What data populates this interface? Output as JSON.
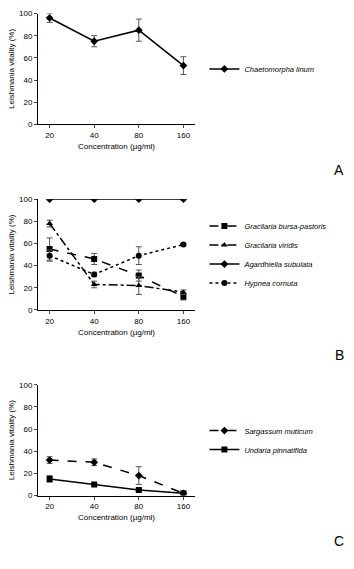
{
  "chart_data": [
    {
      "type": "line",
      "title": "A",
      "x_label": "Concentration (µg/ml)",
      "y_label": "Leishmania vitality (%)",
      "categories": [
        "20",
        "40",
        "80",
        "160"
      ],
      "ylim": [
        0,
        100
      ],
      "yticks": [
        0,
        20,
        40,
        60,
        80,
        100
      ],
      "grid": false,
      "legend": "right",
      "series": [
        {
          "name": "Chaetomorpha linum",
          "color": "#000000",
          "marker": "diamond",
          "line_style": "solid",
          "values": [
            96,
            75,
            85,
            53
          ],
          "errors": [
            4,
            5,
            10,
            8
          ]
        }
      ]
    },
    {
      "type": "line",
      "title": "B",
      "x_label": "Concentration (µg/ml)",
      "y_label": "Leishmania vitality (%)",
      "categories": [
        "20",
        "40",
        "80",
        "160"
      ],
      "ylim": [
        0,
        100
      ],
      "yticks": [
        0,
        20,
        40,
        60,
        80,
        100
      ],
      "grid": false,
      "legend": "right",
      "series": [
        {
          "name": "Gracilaria bursa-pastoris",
          "color": "#000000",
          "marker": "square",
          "line_style": "dash",
          "values": [
            55,
            46,
            31,
            12
          ],
          "errors": [
            10,
            5,
            5,
            3
          ]
        },
        {
          "name": "Gracilaria viridis",
          "color": "#000000",
          "marker": "triangle",
          "line_style": "dashdot",
          "values": [
            78,
            23,
            22,
            16
          ],
          "errors": [
            3,
            3,
            8,
            2
          ]
        },
        {
          "name": "Agardhiella subulata",
          "color": "#000000",
          "marker": "diamond",
          "line_style": "solid",
          "values": [
            100,
            100,
            100,
            100
          ],
          "errors": [
            0,
            0,
            0,
            0
          ]
        },
        {
          "name": "Hypnea cornuta",
          "color": "#000000",
          "marker": "circle",
          "line_style": "dot",
          "values": [
            49,
            32,
            49,
            59
          ],
          "errors": [
            5,
            2,
            8,
            1
          ]
        }
      ]
    },
    {
      "type": "line",
      "title": "C",
      "x_label": "Concentration (µg/ml)",
      "y_label": "Leishmania vitality (%)",
      "categories": [
        "20",
        "40",
        "80",
        "160"
      ],
      "ylim": [
        0,
        100
      ],
      "yticks": [
        0,
        20,
        40,
        60,
        80,
        100
      ],
      "grid": false,
      "legend": "right",
      "series": [
        {
          "name": "Sargassum muticum",
          "color": "#000000",
          "marker": "diamond",
          "line_style": "dash",
          "values": [
            32,
            30,
            18,
            2
          ],
          "errors": [
            3,
            3,
            8,
            1
          ]
        },
        {
          "name": "Undaria pinnatifida",
          "color": "#000000",
          "marker": "square",
          "line_style": "solid",
          "values": [
            15,
            10,
            5,
            2
          ],
          "errors": [
            3,
            1,
            1,
            1
          ]
        }
      ]
    }
  ]
}
